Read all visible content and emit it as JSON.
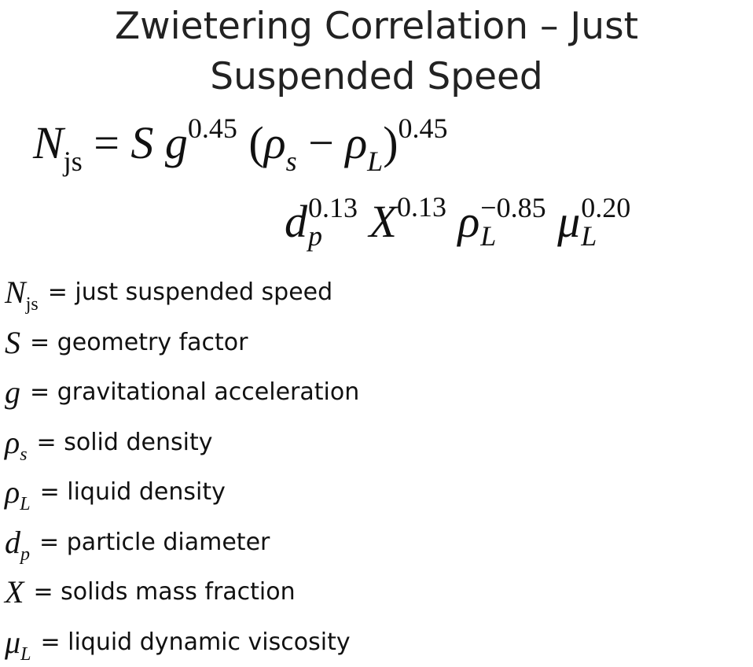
{
  "title": {
    "line1": "Zwietering Correlation – Just",
    "line2": "Suspended Speed"
  },
  "formula": {
    "lhs": "N",
    "lhs_sub": "js",
    "equals": "=",
    "S": "S",
    "g": "g",
    "g_exp": "0.45",
    "paren_open": "(",
    "rho": "ρ",
    "rho_s_sub": "s",
    "minus": "−",
    "rho_L_sub": "L",
    "paren_close": ")",
    "paren_exp": "0.45",
    "d": "d",
    "d_sub": "p",
    "d_exp": "0.13",
    "X": "X",
    "X_exp": "0.13",
    "rhoL_exp": "−0.85",
    "mu": "μ",
    "mu_sub": "L",
    "mu_exp": "0.20"
  },
  "legend": [
    {
      "sym": "N",
      "sub": "js",
      "eq": "=",
      "desc": "just suspended speed"
    },
    {
      "sym": "S",
      "sub": "",
      "eq": "=",
      "desc": "geometry factor"
    },
    {
      "sym": "g",
      "sub": "",
      "eq": "=",
      "desc": "gravitational acceleration"
    },
    {
      "sym": "ρ",
      "sub": "s",
      "eq": "=",
      "desc": "solid density"
    },
    {
      "sym": "ρ",
      "sub": "L",
      "eq": "=",
      "desc": "liquid density"
    },
    {
      "sym": "d",
      "sub": "p",
      "eq": "=",
      "desc": "particle diameter"
    },
    {
      "sym": "X",
      "sub": "",
      "eq": "=",
      "desc": "solids mass fraction"
    },
    {
      "sym": "μ",
      "sub": "L",
      "eq": "=",
      "desc": "liquid dynamic viscosity"
    }
  ]
}
